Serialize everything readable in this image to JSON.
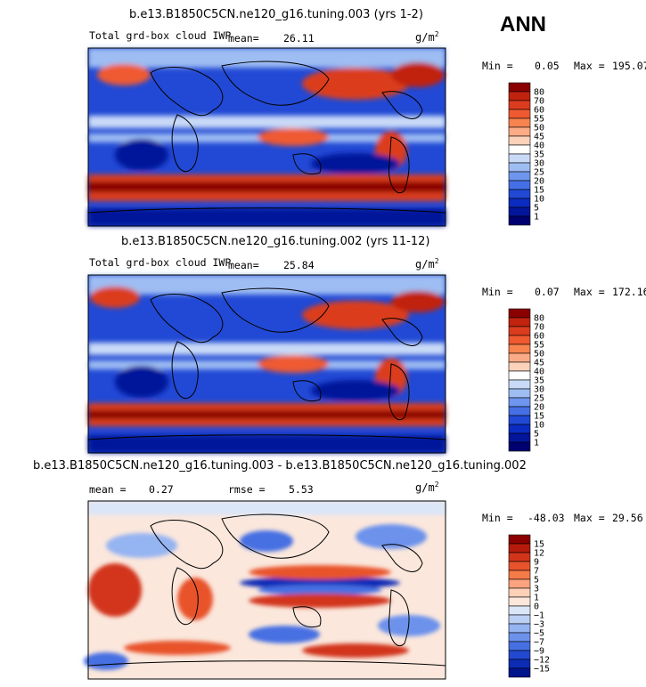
{
  "season_label": "ANN",
  "chart_data": [
    {
      "type": "heatmap",
      "title": "b.e13.B1850C5CN.ne120_g16.tuning.003 (yrs 1-2)",
      "variable": "Total grd-box cloud IWP",
      "mean_label": "mean=",
      "mean": "26.11",
      "units": "g/m",
      "units_exp": "2",
      "min_label": "Min =",
      "min": "0.05",
      "max_label": "Max =",
      "max": "195.07",
      "colorbar": {
        "levels": [
          "80",
          "70",
          "60",
          "55",
          "50",
          "45",
          "40",
          "35",
          "30",
          "25",
          "20",
          "15",
          "10",
          "5",
          "1"
        ],
        "colors": [
          "#8b0000",
          "#c1230f",
          "#db3c1e",
          "#ef5a30",
          "#f7834f",
          "#fbab86",
          "#fdd2bb",
          "#ffffff",
          "#c9daf7",
          "#9ebdf3",
          "#6e96ee",
          "#456fe5",
          "#2149d5",
          "#0a2cc0",
          "#03159a",
          "#000070"
        ]
      }
    },
    {
      "type": "heatmap",
      "title": "b.e13.B1850C5CN.ne120_g16.tuning.002 (yrs 11-12)",
      "variable": "Total grd-box cloud IWP",
      "mean_label": "mean=",
      "mean": "25.84",
      "units": "g/m",
      "units_exp": "2",
      "min_label": "Min =",
      "min": "0.07",
      "max_label": "Max =",
      "max": "172.16",
      "colorbar": {
        "levels": [
          "80",
          "70",
          "60",
          "55",
          "50",
          "45",
          "40",
          "35",
          "30",
          "25",
          "20",
          "15",
          "10",
          "5",
          "1"
        ],
        "colors": [
          "#8b0000",
          "#c1230f",
          "#db3c1e",
          "#ef5a30",
          "#f7834f",
          "#fbab86",
          "#fdd2bb",
          "#ffffff",
          "#c9daf7",
          "#9ebdf3",
          "#6e96ee",
          "#456fe5",
          "#2149d5",
          "#0a2cc0",
          "#03159a",
          "#000070"
        ]
      }
    },
    {
      "type": "heatmap",
      "title": "b.e13.B1850C5CN.ne120_g16.tuning.003 - b.e13.B1850C5CN.ne120_g16.tuning.002",
      "mean_label": "mean =",
      "mean": "0.27",
      "rmse_label": "rmse =",
      "rmse": "5.53",
      "units": "g/m",
      "units_exp": "2",
      "min_label": "Min =",
      "min": "-48.03",
      "max_label": "Max =",
      "max": "29.56",
      "colorbar": {
        "levels": [
          "15",
          "12",
          "9",
          "7",
          "5",
          "3",
          "1",
          "0",
          "−1",
          "−3",
          "−5",
          "−7",
          "−9",
          "−12",
          "−15"
        ],
        "colors": [
          "#8b0000",
          "#b51a0c",
          "#d2341a",
          "#e8532b",
          "#f47a48",
          "#fba37e",
          "#fdd0b8",
          "#fbe7dc",
          "#dbe6f8",
          "#bcd0f5",
          "#95b4f2",
          "#6c92ec",
          "#4670e2",
          "#2249cf",
          "#0c2cb5",
          "#00148c"
        ]
      }
    }
  ]
}
